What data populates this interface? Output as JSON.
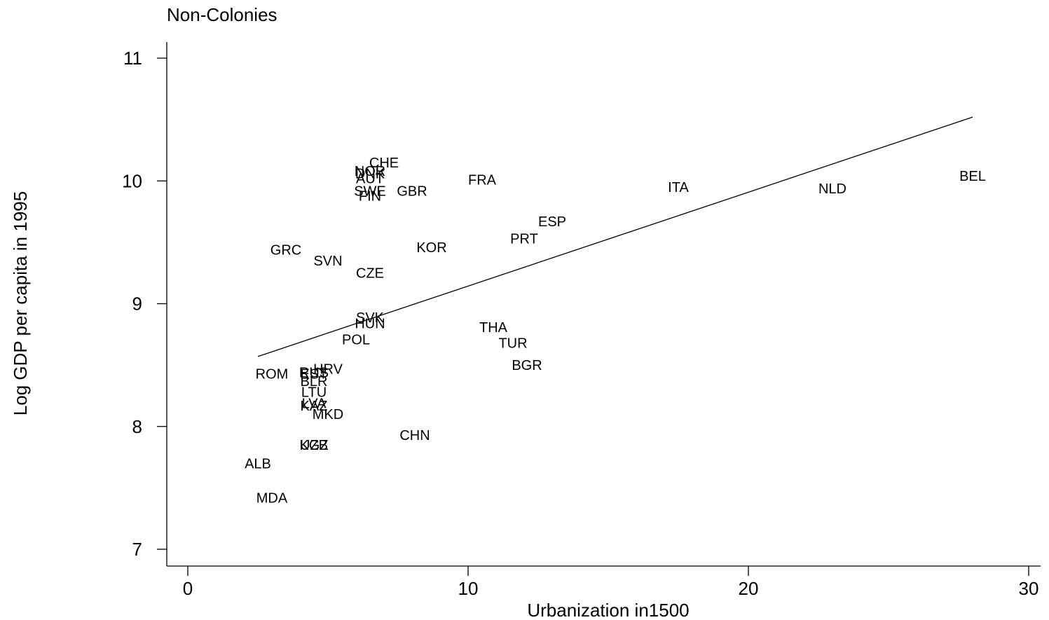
{
  "chart_data": {
    "type": "scatter",
    "title": "Non-Colonies",
    "xlabel": "Urbanization in1500",
    "ylabel": "Log GDP per capita in 1995",
    "xlim": [
      0,
      30
    ],
    "ylim": [
      7,
      11
    ],
    "x_ticks": [
      "0",
      "10",
      "20",
      "30"
    ],
    "y_ticks": [
      "7",
      "8",
      "9",
      "10",
      "11"
    ],
    "grid": false,
    "legend": "none",
    "marker_style": "country-code labels",
    "points": [
      {
        "label": "CHE",
        "x": 7.0,
        "y": 10.15
      },
      {
        "label": "NOR",
        "x": 6.5,
        "y": 10.08
      },
      {
        "label": "DNK",
        "x": 6.5,
        "y": 10.06
      },
      {
        "label": "AUT",
        "x": 6.5,
        "y": 10.02
      },
      {
        "label": "SWE",
        "x": 6.5,
        "y": 9.92
      },
      {
        "label": "FIN",
        "x": 6.5,
        "y": 9.88
      },
      {
        "label": "GBR",
        "x": 8.0,
        "y": 9.92
      },
      {
        "label": "FRA",
        "x": 10.5,
        "y": 10.01
      },
      {
        "label": "ITA",
        "x": 17.5,
        "y": 9.95
      },
      {
        "label": "NLD",
        "x": 23.0,
        "y": 9.94
      },
      {
        "label": "BEL",
        "x": 28.0,
        "y": 10.04
      },
      {
        "label": "ESP",
        "x": 13.0,
        "y": 9.67
      },
      {
        "label": "PRT",
        "x": 12.0,
        "y": 9.53
      },
      {
        "label": "GRC",
        "x": 3.5,
        "y": 9.44
      },
      {
        "label": "KOR",
        "x": 8.7,
        "y": 9.46
      },
      {
        "label": "SVN",
        "x": 5.0,
        "y": 9.35
      },
      {
        "label": "CZE",
        "x": 6.5,
        "y": 9.25
      },
      {
        "label": "SVK",
        "x": 6.5,
        "y": 8.89
      },
      {
        "label": "HUN",
        "x": 6.5,
        "y": 8.84
      },
      {
        "label": "THA",
        "x": 10.9,
        "y": 8.81
      },
      {
        "label": "POL",
        "x": 6.0,
        "y": 8.71
      },
      {
        "label": "TUR",
        "x": 11.6,
        "y": 8.68
      },
      {
        "label": "BGR",
        "x": 12.1,
        "y": 8.5
      },
      {
        "label": "ROM",
        "x": 3.0,
        "y": 8.43
      },
      {
        "label": "HRV",
        "x": 5.0,
        "y": 8.47
      },
      {
        "label": "RUS",
        "x": 4.5,
        "y": 8.44
      },
      {
        "label": "EST",
        "x": 4.5,
        "y": 8.43
      },
      {
        "label": "BLR",
        "x": 4.5,
        "y": 8.37
      },
      {
        "label": "LTU",
        "x": 4.5,
        "y": 8.28
      },
      {
        "label": "LVA",
        "x": 4.5,
        "y": 8.19
      },
      {
        "label": "KAZ",
        "x": 4.5,
        "y": 8.17
      },
      {
        "label": "MKD",
        "x": 5.0,
        "y": 8.1
      },
      {
        "label": "CHN",
        "x": 8.1,
        "y": 7.93
      },
      {
        "label": "UZB",
        "x": 4.5,
        "y": 7.85
      },
      {
        "label": "KGZ",
        "x": 4.5,
        "y": 7.85
      },
      {
        "label": "ALB",
        "x": 2.5,
        "y": 7.7
      },
      {
        "label": "MDA",
        "x": 3.0,
        "y": 7.42
      }
    ],
    "fit_line": {
      "x": [
        2.5,
        28.0
      ],
      "y": [
        8.57,
        10.52
      ]
    }
  }
}
